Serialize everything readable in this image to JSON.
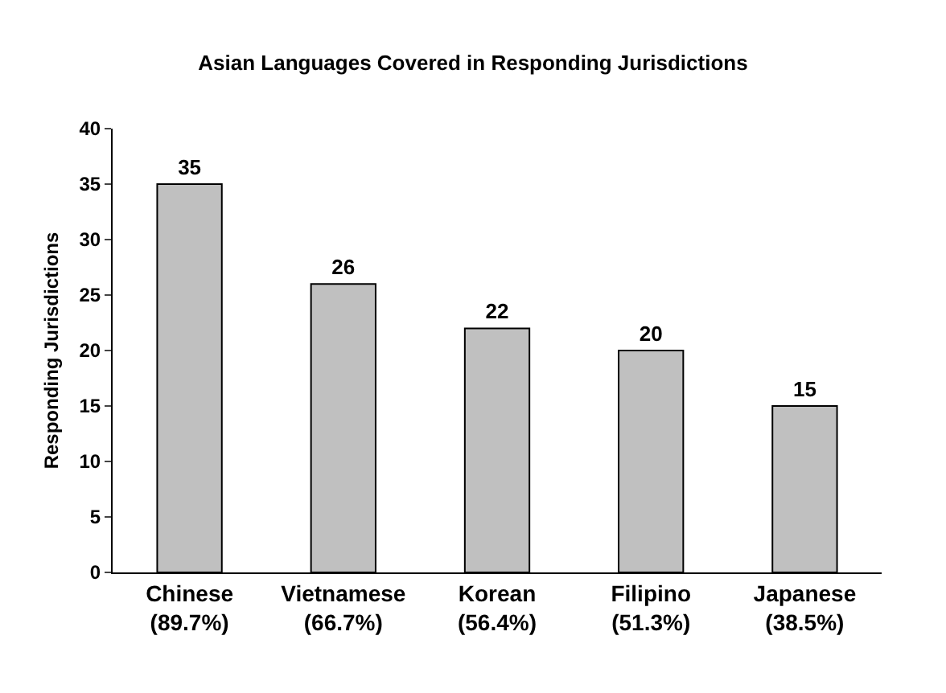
{
  "chart_data": {
    "type": "bar",
    "title": "Asian Languages Covered in Responding Jurisdictions",
    "ylabel": "Responding Jurisdictions",
    "categories": [
      "Chinese\n(89.7%)",
      "Vietnamese\n(66.7%)",
      "Korean\n(56.4%)",
      "Filipino\n(51.3%)",
      "Japanese\n(38.5%)"
    ],
    "values": [
      35,
      26,
      22,
      20,
      15
    ],
    "color": "#c0c0c0",
    "ylim": [
      0,
      40
    ],
    "yticks": [
      0,
      5,
      10,
      15,
      20,
      25,
      30,
      35,
      40
    ],
    "grid": false,
    "data_labels": true,
    "legend": false
  }
}
